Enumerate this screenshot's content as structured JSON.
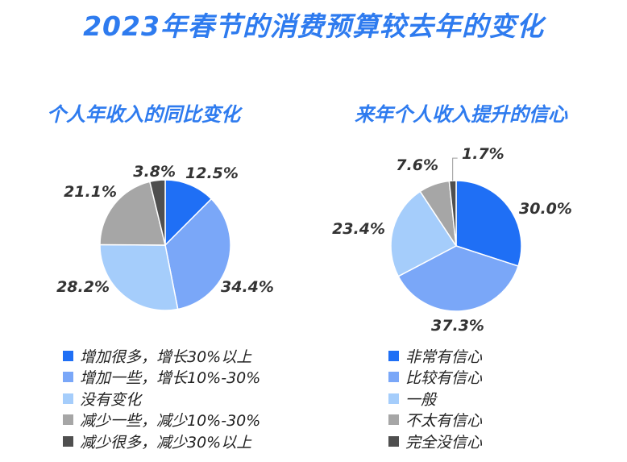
{
  "title": "2023年春节的消费预算较去年的变化",
  "chart_data": [
    {
      "type": "pie",
      "title": "个人年收入的同比变化",
      "categories": [
        "增加很多，增长30%以上",
        "增加一些，增长10%-30%",
        "没有变化",
        "减少一些，减少10%-30%",
        "减少很多，减少30%以上"
      ],
      "values": [
        12.5,
        34.4,
        28.2,
        21.1,
        3.8
      ],
      "labels": [
        "12.5%",
        "34.4%",
        "28.2%",
        "21.1%",
        "3.8%"
      ],
      "colors": [
        "#1F6FF5",
        "#7AA7F8",
        "#A5CDFB",
        "#A6A6A6",
        "#4F4F4F"
      ],
      "legend": "bottom"
    },
    {
      "type": "pie",
      "title": "来年个人收入提升的信心",
      "categories": [
        "非常有信心",
        "比较有信心",
        "一般",
        "不太有信心",
        "完全没信心"
      ],
      "values": [
        30.0,
        37.3,
        23.4,
        7.6,
        1.7
      ],
      "labels": [
        "30.0%",
        "37.3%",
        "23.4%",
        "7.6%",
        "1.7%"
      ],
      "colors": [
        "#1F6FF5",
        "#7AA7F8",
        "#A5CDFB",
        "#A6A6A6",
        "#4F4F4F"
      ],
      "legend": "bottom"
    }
  ]
}
